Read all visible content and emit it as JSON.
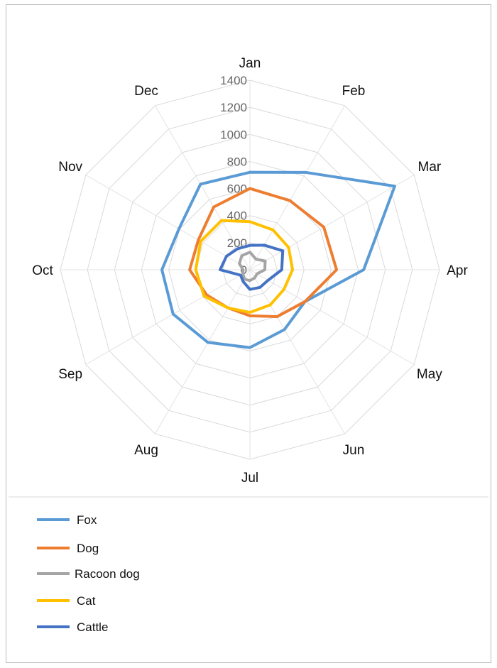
{
  "chart_data": {
    "type": "radar",
    "title": "",
    "categories": [
      "Jan",
      "Feb",
      "Mar",
      "Apr",
      "May",
      "Jun",
      "Jul",
      "Aug",
      "Sep",
      "Oct",
      "Nov",
      "Dec"
    ],
    "radial_ticks": [
      "0",
      "200",
      "400",
      "600",
      "800",
      "1000",
      "1200",
      "1400"
    ],
    "rlim": [
      0,
      1400
    ],
    "grid": true,
    "legend_position": "bottom",
    "series": [
      {
        "name": "Fox",
        "color": "#5b9bd5",
        "values": [
          720,
          830,
          1235,
          840,
          470,
          510,
          575,
          620,
          655,
          650,
          605,
          730
        ]
      },
      {
        "name": "Dog",
        "color": "#ed7d31",
        "values": [
          600,
          590,
          630,
          640,
          470,
          400,
          340,
          325,
          370,
          445,
          440,
          535
        ]
      },
      {
        "name": "Racoon dog",
        "color": "#a5a5a5",
        "values": [
          130,
          90,
          130,
          110,
          60,
          70,
          80,
          80,
          60,
          50,
          90,
          120
        ]
      },
      {
        "name": "Cat",
        "color": "#ffc000",
        "values": [
          355,
          340,
          330,
          315,
          290,
          300,
          315,
          325,
          390,
          400,
          420,
          420
        ]
      },
      {
        "name": "Cattle",
        "color": "#4472c4",
        "values": [
          180,
          210,
          280,
          235,
          155,
          150,
          145,
          100,
          80,
          220,
          200,
          180
        ]
      }
    ]
  }
}
